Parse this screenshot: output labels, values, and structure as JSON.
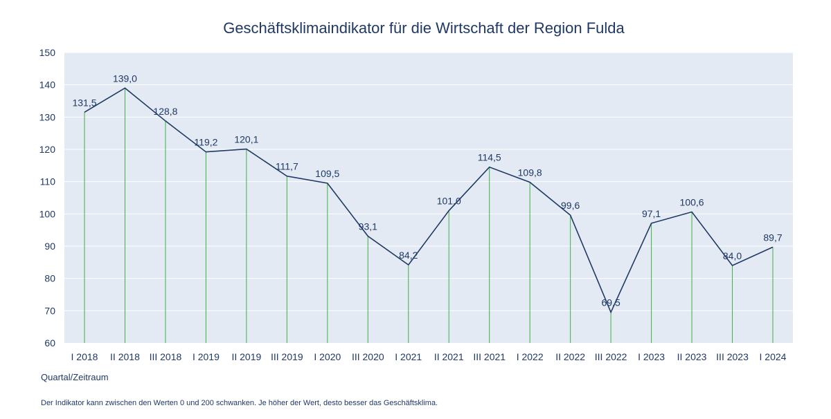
{
  "chart_data": {
    "type": "line",
    "title": "Geschäftsklimaindikator für die Wirtschaft der Region Fulda",
    "xlabel": "Quartal/Zeitraum",
    "ylabel": "",
    "ylim": [
      60,
      150
    ],
    "yticks": [
      60,
      70,
      80,
      90,
      100,
      110,
      120,
      130,
      140,
      150
    ],
    "grid": true,
    "categories": [
      "I 2018",
      "II 2018",
      "III 2018",
      "I 2019",
      "II 2019",
      "III 2019",
      "I 2020",
      "III 2020",
      "I 2021",
      "II 2021",
      "III 2021",
      "I 2022",
      "II 2022",
      "III 2022",
      "I 2023",
      "II 2023",
      "III 2023",
      "I 2024"
    ],
    "series": [
      {
        "name": "Geschäftsklimaindikator",
        "values": [
          131.5,
          139.0,
          128.8,
          119.2,
          120.1,
          111.7,
          109.5,
          93.1,
          84.2,
          101.0,
          114.5,
          109.8,
          99.6,
          69.5,
          97.1,
          100.6,
          84.0,
          89.7
        ],
        "labels": [
          "131,5",
          "139,0",
          "128,8",
          "119,2",
          "120,1",
          "111,7",
          "109,5",
          "93,1",
          "84,2",
          "101,0",
          "114,5",
          "109,8",
          "99,6",
          "69,5",
          "97,1",
          "100,6",
          "84,0",
          "89,7"
        ]
      }
    ],
    "footnote": "Der Indikator kann zwischen den Werten 0 und  200 schwanken. Je höher der Wert, desto besser das Geschäftsklima.",
    "colors": {
      "line": "#1f3864",
      "drop_lines": "#3cb043",
      "plot_background": "#e3eaf3",
      "grid": "#ffffff",
      "text": "#1f3864"
    }
  }
}
